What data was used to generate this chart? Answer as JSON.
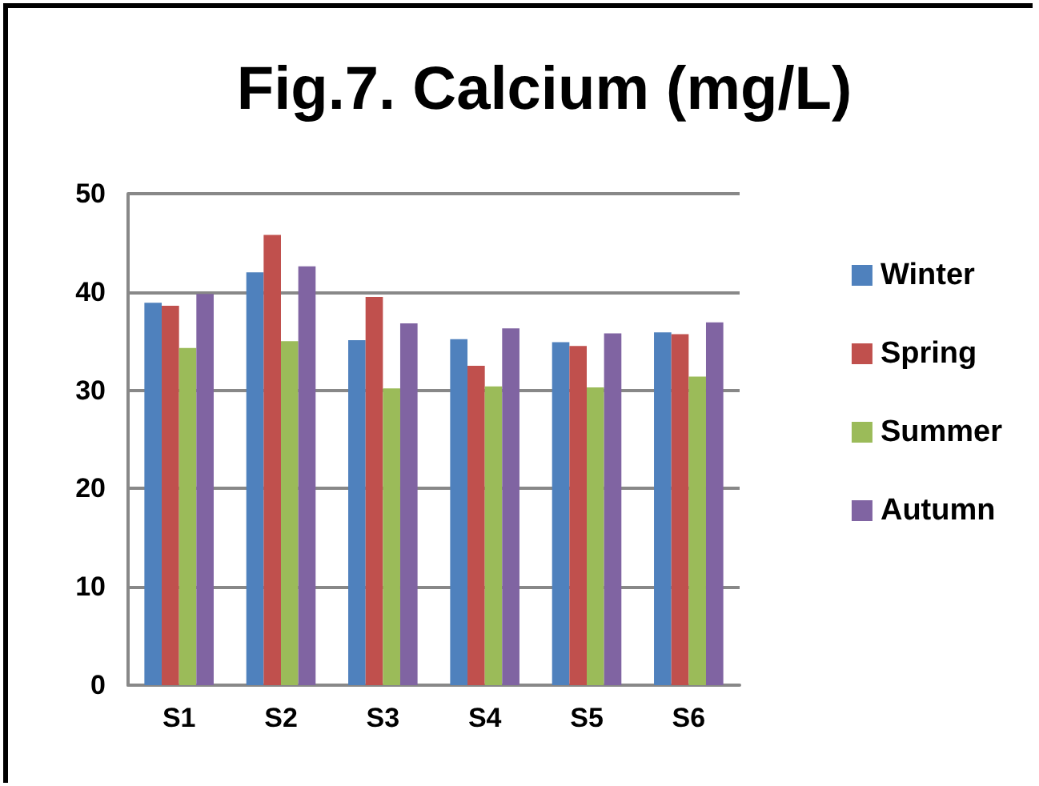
{
  "chart_data": {
    "type": "bar",
    "title": "Fig.7. Calcium (mg/L)",
    "categories": [
      "S1",
      "S2",
      "S3",
      "S4",
      "S5",
      "S6"
    ],
    "series": [
      {
        "name": "Winter",
        "color": "#4f81bd",
        "values": [
          38.9,
          42.0,
          35.1,
          35.2,
          34.9,
          35.9
        ]
      },
      {
        "name": "Spring",
        "color": "#c0504d",
        "values": [
          38.6,
          45.8,
          39.5,
          32.5,
          34.5,
          35.7
        ]
      },
      {
        "name": "Summer",
        "color": "#9bbb59",
        "values": [
          34.3,
          35.0,
          30.2,
          30.4,
          30.3,
          31.4
        ]
      },
      {
        "name": "Autumn",
        "color": "#8064a2",
        "values": [
          39.8,
          42.6,
          36.8,
          36.3,
          35.8,
          36.9
        ]
      }
    ],
    "ylim": [
      0,
      50
    ],
    "yticks": [
      0,
      10,
      20,
      30,
      40,
      50
    ],
    "grid": "y",
    "legend": "right"
  }
}
